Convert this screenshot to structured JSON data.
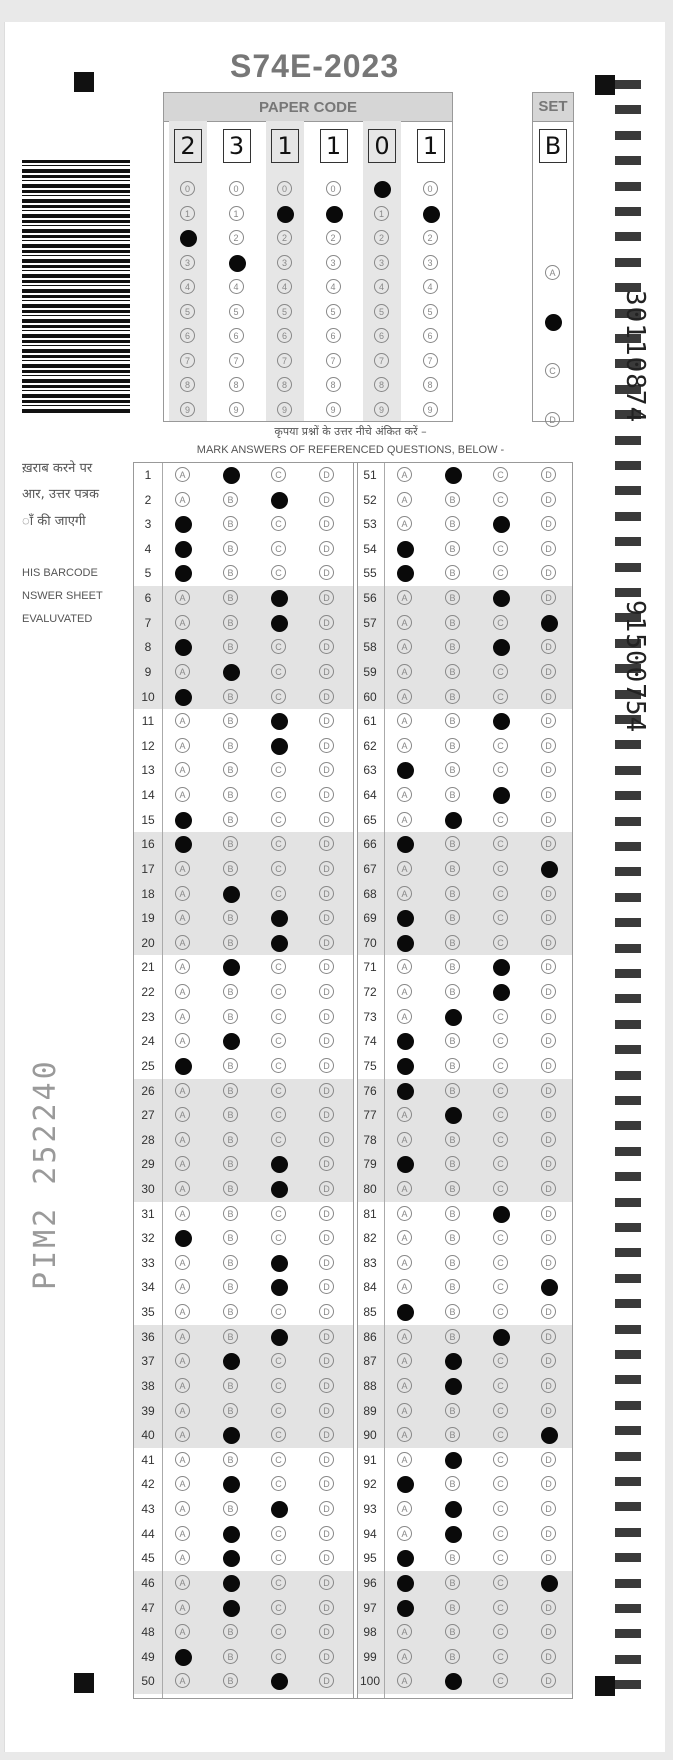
{
  "sheet": {
    "title": "S74E-2023",
    "paper_code_label": "PAPER CODE",
    "paper_code_digits": [
      "2",
      "3",
      "1",
      "1",
      "0",
      "1"
    ],
    "set_label": "SET",
    "set_value": "B",
    "set_options": [
      "A",
      "B",
      "C",
      "D"
    ],
    "instruction_hindi": "कृपया प्रश्नों के उत्तर नीचे अंकित करें –",
    "instruction_english": "MARK ANSWERS OF REFERENCED QUESTIONS, BELOW -",
    "side_text_hindi": [
      "ख़राब करने पर",
      "आर, उत्तर पत्रक",
      "ाँ की जाएगी"
    ],
    "side_text_english": [
      "HIS BARCODE",
      "NSWER SHEET",
      "EVALUVATED"
    ],
    "serial_text": "PIM2  252240",
    "vertical_code_1": "30110874",
    "vertical_code_2": "91500754"
  },
  "answers": {
    "options": [
      "A",
      "B",
      "C",
      "D"
    ],
    "marked": [
      "B",
      "C",
      "A",
      "A",
      "A",
      "C",
      "C",
      "A",
      "B",
      "A",
      "C",
      "C",
      "",
      "",
      "A",
      "A",
      "",
      "B",
      "C",
      "C",
      "B",
      "",
      "",
      "B",
      "A",
      "",
      "",
      "",
      "C",
      "C",
      "",
      "A",
      "C",
      "C",
      "",
      "C",
      "B",
      "",
      "",
      "B",
      "",
      "B",
      "C",
      "B",
      "B",
      "B",
      "B",
      "",
      "A",
      "C",
      "B",
      "",
      "C",
      "A",
      "A",
      "C",
      "D",
      "C",
      "",
      "",
      "C",
      "",
      "A",
      "C",
      "B",
      "A",
      "D",
      "",
      "A",
      "A",
      "C",
      "C",
      "B",
      "A",
      "A",
      "A",
      "B",
      "",
      "A",
      "",
      "C",
      "",
      "",
      "D",
      "A",
      "C",
      "B",
      "B",
      "",
      "D",
      "B",
      "A",
      "B",
      "B",
      "A",
      "A",
      "A",
      "",
      "",
      "B"
    ],
    "extra_marks": {
      "96": [
        "A",
        "D"
      ]
    }
  }
}
